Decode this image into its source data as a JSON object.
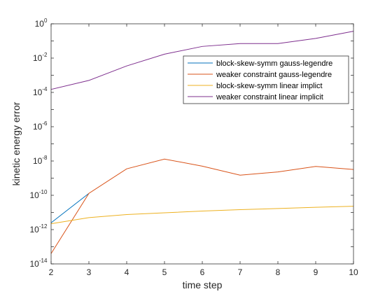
{
  "chart_data": {
    "type": "line",
    "xlabel": "time step",
    "ylabel": "kinetic energy error",
    "xlim": [
      2,
      10
    ],
    "ylim": [
      1e-14,
      1
    ],
    "yscale": "log",
    "xticks": [
      "2",
      "3",
      "4",
      "5",
      "6",
      "7",
      "8",
      "9",
      "10"
    ],
    "yticks": [
      {
        "base": "10",
        "exp": "0"
      },
      {
        "base": "10",
        "exp": "-2"
      },
      {
        "base": "10",
        "exp": "-4"
      },
      {
        "base": "10",
        "exp": "-6"
      },
      {
        "base": "10",
        "exp": "-8"
      },
      {
        "base": "10",
        "exp": "-10"
      },
      {
        "base": "10",
        "exp": "-12"
      },
      {
        "base": "10",
        "exp": "-14"
      }
    ],
    "legend_position": "top-right",
    "grid": false,
    "series": [
      {
        "name": "block-skew-symm gauss-legendre",
        "color": "#0072BD",
        "x": [
          2,
          3
        ],
        "y": [
          2.5e-12,
          1.3e-10
        ]
      },
      {
        "name": "weaker constraint gauss-legendre",
        "color": "#D95319",
        "x": [
          2,
          3,
          4,
          5,
          6,
          7,
          8,
          9,
          10
        ],
        "y": [
          4e-14,
          1.3e-10,
          3.5e-09,
          1.3e-08,
          5e-09,
          1.5e-09,
          2.3e-09,
          4.8e-09,
          3.2e-09
        ]
      },
      {
        "name": "block-skew-symm linear implict",
        "color": "#EDB120",
        "x": [
          2,
          3,
          4,
          5,
          6,
          7,
          8,
          9,
          10
        ],
        "y": [
          2.2e-12,
          5e-12,
          7.5e-12,
          9.5e-12,
          1.2e-11,
          1.45e-11,
          1.7e-11,
          2e-11,
          2.3e-11
        ]
      },
      {
        "name": "weaker constraint linear implicit",
        "color": "#7E2F8E",
        "x": [
          2,
          3,
          4,
          5,
          6,
          7,
          8,
          9,
          10
        ],
        "y": [
          0.00015,
          0.0005,
          0.0035,
          0.017,
          0.048,
          0.07,
          0.07,
          0.14,
          0.37
        ]
      }
    ]
  }
}
